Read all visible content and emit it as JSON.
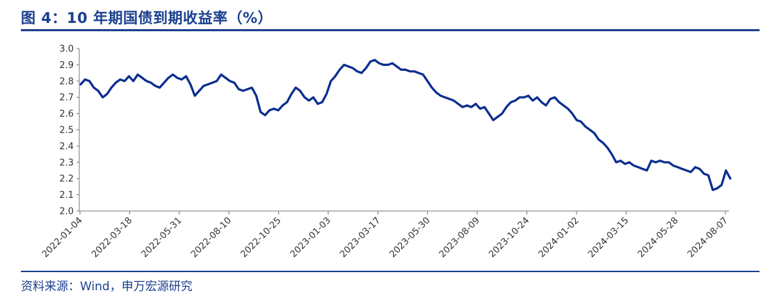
{
  "header": {
    "title": "图 4：10 年期国债到期收益率（%）",
    "source": "资料来源：Wind，申万宏源研究"
  },
  "colors": {
    "line": "#0a2d8f",
    "accent": "#1a3f8f",
    "axis": "#777777"
  },
  "chart_data": {
    "type": "line",
    "title": "10 年期国债到期收益率（%）",
    "xlabel": "",
    "ylabel": "",
    "ylim": [
      2.0,
      3.0
    ],
    "yticks": [
      "3.0",
      "2.9",
      "2.8",
      "2.7",
      "2.6",
      "2.5",
      "2.4",
      "2.3",
      "2.2",
      "2.1",
      "2.0"
    ],
    "xticks": [
      "2022-01-04",
      "2022-03-18",
      "2022-05-31",
      "2022-08-10",
      "2022-10-25",
      "2023-01-03",
      "2023-03-17",
      "2023-05-30",
      "2023-08-09",
      "2023-10-24",
      "2024-01-02",
      "2024-03-15",
      "2024-05-28",
      "2024-08-07"
    ],
    "legend": "none",
    "grid": false,
    "series": [
      {
        "name": "10年期国债到期收益率",
        "values": [
          2.78,
          2.81,
          2.8,
          2.76,
          2.74,
          2.7,
          2.72,
          2.76,
          2.79,
          2.81,
          2.8,
          2.83,
          2.8,
          2.84,
          2.82,
          2.8,
          2.79,
          2.77,
          2.76,
          2.79,
          2.82,
          2.84,
          2.82,
          2.81,
          2.83,
          2.78,
          2.71,
          2.74,
          2.77,
          2.78,
          2.79,
          2.8,
          2.84,
          2.82,
          2.8,
          2.79,
          2.75,
          2.74,
          2.75,
          2.76,
          2.71,
          2.61,
          2.59,
          2.62,
          2.63,
          2.62,
          2.65,
          2.67,
          2.72,
          2.76,
          2.74,
          2.7,
          2.68,
          2.7,
          2.66,
          2.67,
          2.72,
          2.8,
          2.83,
          2.87,
          2.9,
          2.89,
          2.88,
          2.86,
          2.85,
          2.88,
          2.92,
          2.93,
          2.91,
          2.9,
          2.9,
          2.91,
          2.89,
          2.87,
          2.87,
          2.86,
          2.86,
          2.85,
          2.84,
          2.8,
          2.76,
          2.73,
          2.71,
          2.7,
          2.69,
          2.68,
          2.66,
          2.64,
          2.65,
          2.64,
          2.66,
          2.63,
          2.64,
          2.6,
          2.56,
          2.58,
          2.6,
          2.64,
          2.67,
          2.68,
          2.7,
          2.7,
          2.71,
          2.68,
          2.7,
          2.67,
          2.65,
          2.69,
          2.7,
          2.67,
          2.65,
          2.63,
          2.6,
          2.56,
          2.55,
          2.52,
          2.5,
          2.48,
          2.44,
          2.42,
          2.39,
          2.35,
          2.3,
          2.31,
          2.29,
          2.3,
          2.28,
          2.27,
          2.26,
          2.25,
          2.31,
          2.3,
          2.31,
          2.3,
          2.3,
          2.28,
          2.27,
          2.26,
          2.25,
          2.24,
          2.27,
          2.26,
          2.23,
          2.22,
          2.13,
          2.14,
          2.16,
          2.25,
          2.2
        ]
      }
    ]
  }
}
